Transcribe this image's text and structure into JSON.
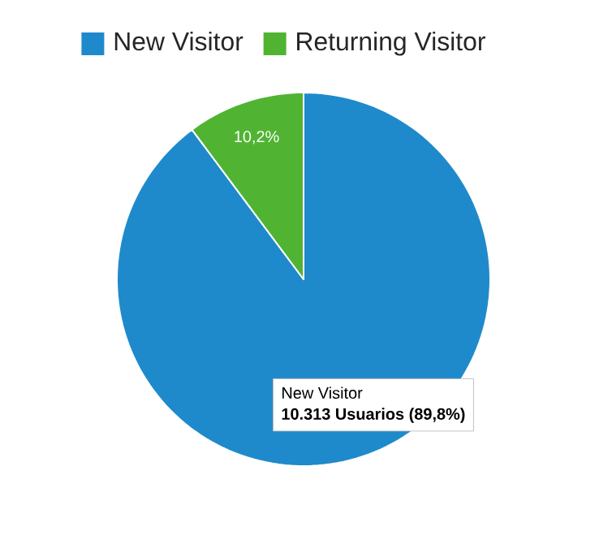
{
  "chart_data": {
    "type": "pie",
    "categories": [
      "New Visitor",
      "Returning Visitor"
    ],
    "values": [
      89.8,
      10.2
    ],
    "colors": [
      "#1f8acb",
      "#50b432"
    ],
    "value_labels": [
      null,
      "10,2%"
    ],
    "legend": "top",
    "annotations": [
      "New Visitor",
      "10.313 Usuarios (89,8%)"
    ]
  }
}
